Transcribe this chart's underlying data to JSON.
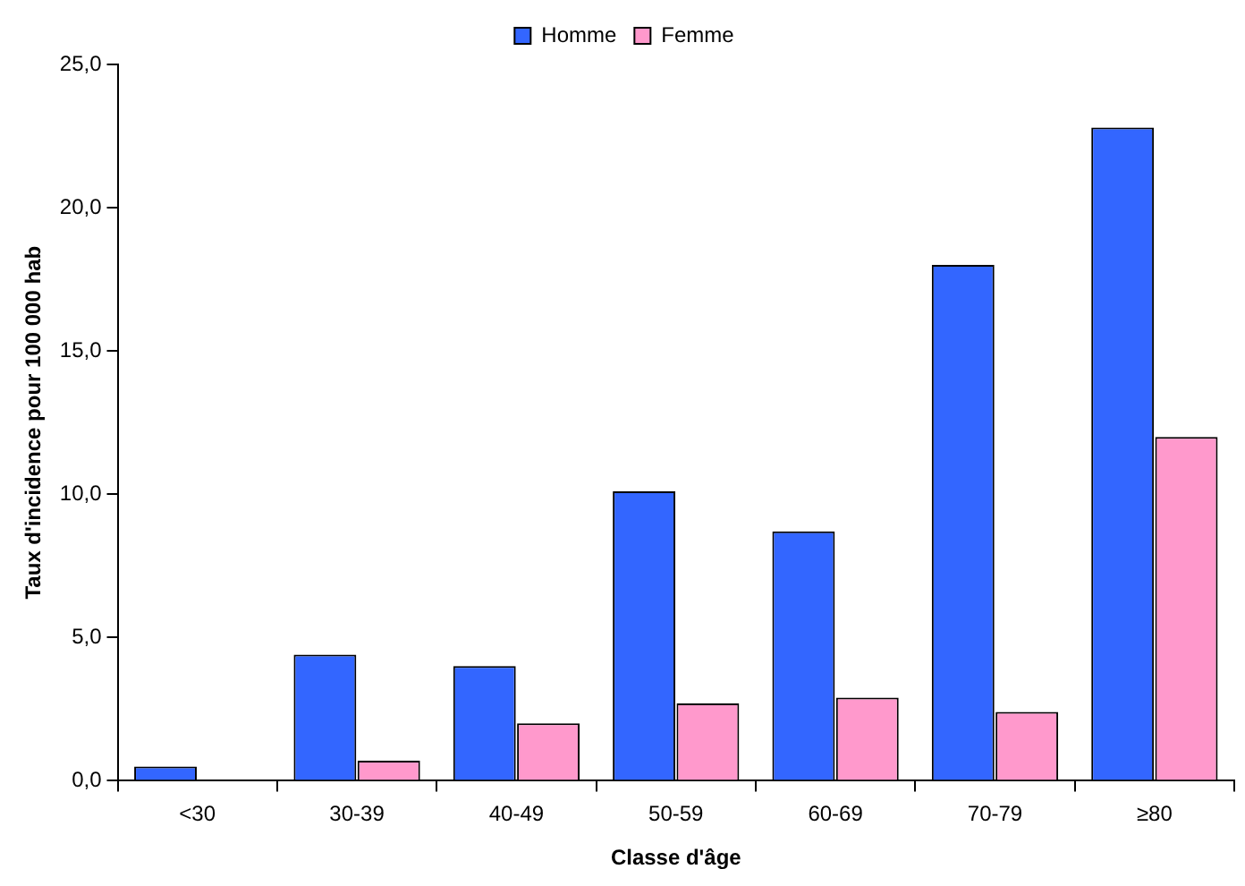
{
  "chart_data": {
    "type": "bar",
    "xlabel": "Classe d'âge",
    "ylabel": "Taux d'incidence pour 100 000 hab",
    "categories": [
      "<30",
      "30-39",
      "40-49",
      "50-59",
      "60-69",
      "70-79",
      "≥80"
    ],
    "series": [
      {
        "name": "Homme",
        "color": "#3366ff",
        "values": [
          0.5,
          4.4,
          4.0,
          10.1,
          8.7,
          18.0,
          22.8
        ]
      },
      {
        "name": "Femme",
        "color": "#ff99cc",
        "values": [
          0,
          0.7,
          2.0,
          2.7,
          2.9,
          2.4,
          12.0
        ]
      }
    ],
    "ylim": [
      0,
      25
    ],
    "yticks": [
      {
        "value": 0,
        "label": "0,0"
      },
      {
        "value": 5,
        "label": "5,0"
      },
      {
        "value": 10,
        "label": "10,0"
      },
      {
        "value": 15,
        "label": "15,0"
      },
      {
        "value": 20,
        "label": "20,0"
      },
      {
        "value": 25,
        "label": "25,0"
      }
    ],
    "grid": false,
    "legend": "top"
  }
}
